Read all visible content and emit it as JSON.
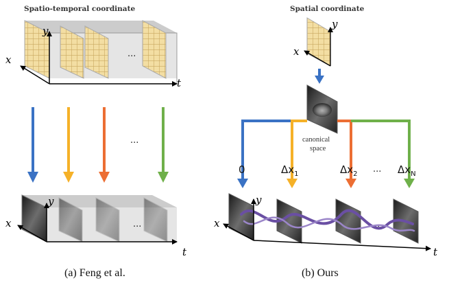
{
  "left_panel": {
    "header": "Spatio-temporal coordinate",
    "caption": "(a) Feng et al.",
    "axes": {
      "x": "x",
      "y": "y",
      "t": "t"
    },
    "ellipsis": "...",
    "arrow_colors": [
      "#3a72c4",
      "#f5b128",
      "#ec6e33",
      "#6fb04a"
    ]
  },
  "right_panel": {
    "header": "Spatial coordinate",
    "caption": "(b) Ours",
    "axes": {
      "x": "x",
      "y": "y",
      "t": "t"
    },
    "canonical_label_line1": "canonical",
    "canonical_label_line2": "space",
    "offsets": {
      "zero": "0",
      "dx1_base": "Δx",
      "dx1_sub": "1",
      "dx2_base": "Δx",
      "dx2_sub": "2",
      "dxn_base": "Δx",
      "dxn_sub": "N",
      "ellipsis": "..."
    },
    "trajectory_color": "#6a4fa3"
  }
}
